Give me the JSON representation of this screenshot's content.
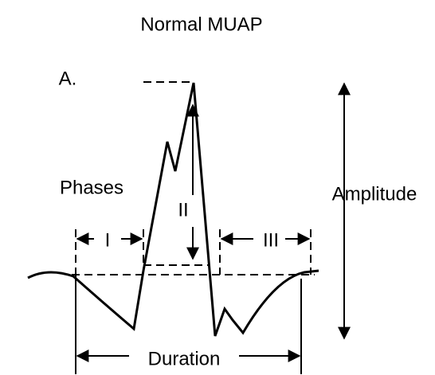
{
  "title": "Normal MUAP",
  "panel_label": "A.",
  "phases_label": "Phases",
  "phases": [
    "I",
    "II",
    "III"
  ],
  "amplitude_label": "Amplitude",
  "duration_label": "Duration"
}
